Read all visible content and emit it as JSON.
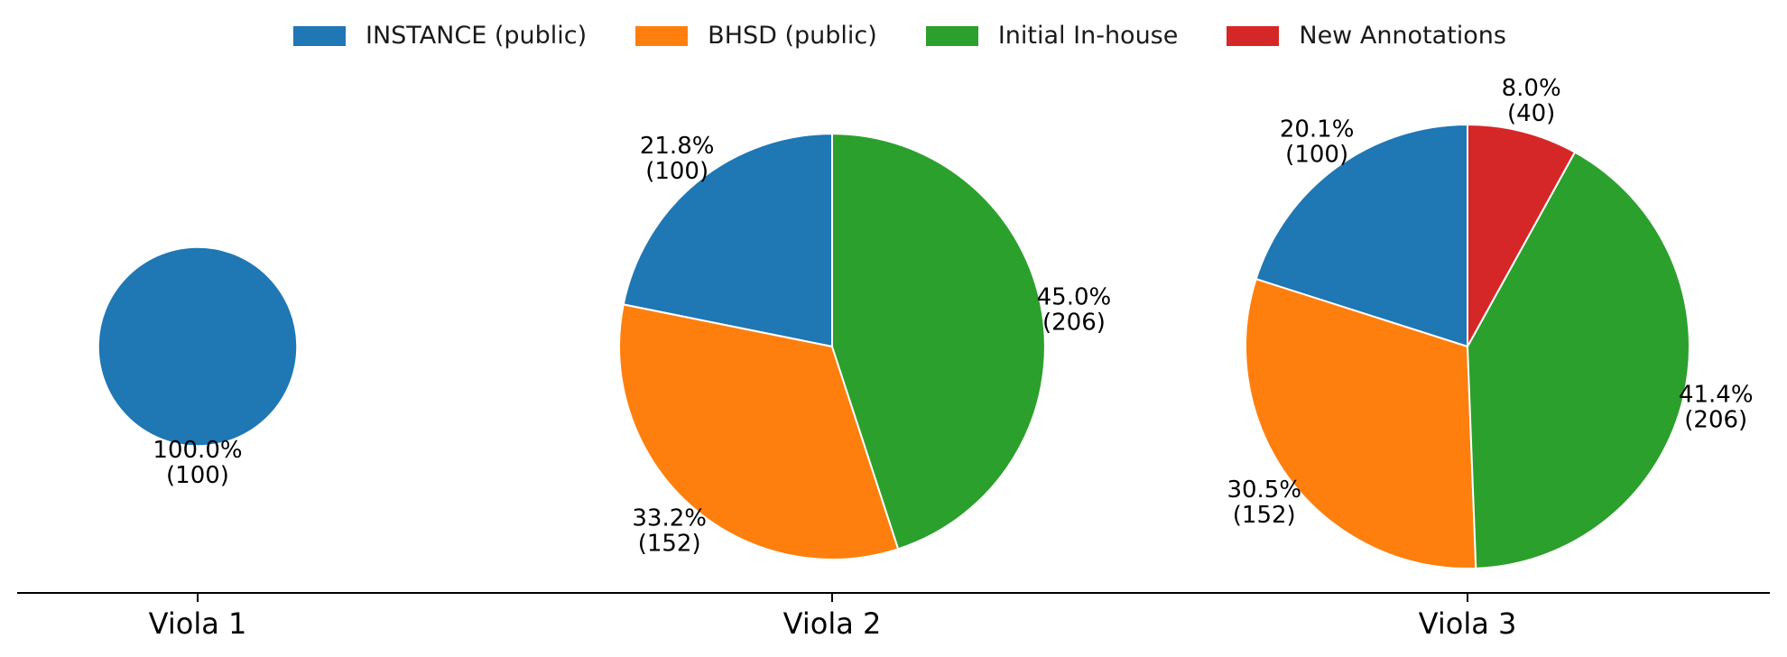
{
  "chart_data": {
    "type": "pie",
    "legend": {
      "placement": "top-center",
      "entries": [
        {
          "key": "instance",
          "name": "INSTANCE (public)",
          "color": "#1f77b4"
        },
        {
          "key": "bhsd",
          "name": "BHSD (public)",
          "color": "#ff7f0e"
        },
        {
          "key": "inhouse",
          "name": "Initial In-house",
          "color": "#2ca02c"
        },
        {
          "key": "new",
          "name": "New Annotations",
          "color": "#d62728"
        }
      ]
    },
    "categories": [
      "Viola 1",
      "Viola 2",
      "Viola 3"
    ],
    "pies": [
      {
        "category": "Viola 1",
        "slices": [
          {
            "key": "instance",
            "value": 100,
            "pct_label": "100.0%",
            "count_label": "(100)"
          }
        ]
      },
      {
        "category": "Viola 2",
        "slices": [
          {
            "key": "instance",
            "value": 100,
            "pct_label": "21.8%",
            "count_label": "(100)"
          },
          {
            "key": "bhsd",
            "value": 152,
            "pct_label": "33.2%",
            "count_label": "(152)"
          },
          {
            "key": "inhouse",
            "value": 206,
            "pct_label": "45.0%",
            "count_label": "(206)"
          }
        ]
      },
      {
        "category": "Viola 3",
        "slices": [
          {
            "key": "instance",
            "value": 100,
            "pct_label": "20.1%",
            "count_label": "(100)"
          },
          {
            "key": "bhsd",
            "value": 152,
            "pct_label": "30.5%",
            "count_label": "(152)"
          },
          {
            "key": "inhouse",
            "value": 206,
            "pct_label": "41.4%",
            "count_label": "(206)"
          },
          {
            "key": "new",
            "value": 40,
            "pct_label": "8.0%",
            "count_label": "(40)"
          }
        ]
      }
    ],
    "start_angle_deg": 90,
    "direction": "counterclockwise",
    "slice_edge_color": "#ffffff"
  }
}
